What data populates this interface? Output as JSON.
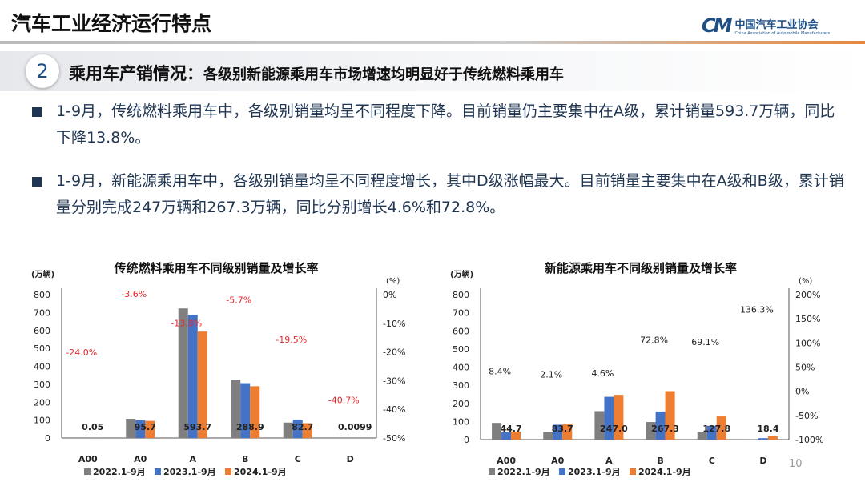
{
  "header": {
    "title": "汽车工业经济运行特点",
    "logo_cn": "中国汽车工业协会",
    "logo_en": "China Association of Automobile Manufacturers",
    "logo_mark": "CM"
  },
  "section": {
    "number": "2",
    "title": "乘用车产销情况：",
    "subtitle": "各级别新能源乘用车市场增速均明显好于传统燃料乘用车"
  },
  "bullets": [
    "1-9月，传统燃料乘用车中，各级别销量均呈不同程度下降。目前销量仍主要集中在A级，累计销量593.7万辆，同比下降13.8%。",
    "1-9月，新能源乘用车中，各级别销量均呈不同程度增长，其中D级涨幅最大。目前销量主要集中在A级和B级，累计销量分别完成247万辆和267.3万辆，同比分别增长4.6%和72.8%。"
  ],
  "page_number": "10",
  "chart_data": [
    {
      "type": "bar",
      "title": "传统燃料乘用车不同级别销量及增长率",
      "ylabel": "(万辆)",
      "y2label": "(%)",
      "categories": [
        "A00",
        "A0",
        "A",
        "B",
        "C",
        "D"
      ],
      "ylim": [
        0,
        800
      ],
      "yticks": [
        "0",
        "100",
        "200",
        "300",
        "400",
        "500",
        "600",
        "700",
        "800"
      ],
      "y2lim": [
        -50,
        0
      ],
      "y2ticks": [
        "-50%",
        "-40%",
        "-30%",
        "-20%",
        "-10%",
        "0%"
      ],
      "series": [
        {
          "name": "2022.1-9月",
          "color": "#7f7f7f",
          "values": [
            0,
            107,
            723,
            325,
            86,
            0
          ]
        },
        {
          "name": "2023.1-9月",
          "color": "#4472c4",
          "values": [
            0,
            100,
            688,
            306,
            103,
            0
          ]
        },
        {
          "name": "2024.1-9月",
          "color": "#ed7d31",
          "values": [
            0.05,
            95.7,
            593.7,
            288.9,
            82.7,
            0.0099
          ]
        }
      ],
      "data_labels": [
        "0.05",
        "95.7",
        "593.7",
        "288.9",
        "82.7",
        "0.0099"
      ],
      "growth_rates": [
        -24.0,
        -3.6,
        -13.8,
        -5.7,
        -19.5,
        -40.7
      ],
      "growth_labels": [
        "-24.0%",
        "-3.6%",
        "-13.8%",
        "-5.7%",
        "-19.5%",
        "-40.7%"
      ],
      "growth_color": "#e8292b",
      "legend": "bottom"
    },
    {
      "type": "bar",
      "title": "新能源乘用车不同级别销量及增长率",
      "ylabel": "(万辆)",
      "y2label": "(%)",
      "categories": [
        "A00",
        "A0",
        "A",
        "B",
        "C",
        "D"
      ],
      "ylim": [
        0,
        800
      ],
      "yticks": [
        "0",
        "100",
        "200",
        "300",
        "400",
        "500",
        "600",
        "700",
        "800"
      ],
      "y2lim": [
        -100,
        200
      ],
      "y2ticks": [
        "-100%",
        "-50%",
        "0%",
        "50%",
        "100%",
        "150%",
        "200%"
      ],
      "series": [
        {
          "name": "2022.1-9月",
          "color": "#7f7f7f",
          "values": [
            92,
            42,
            157,
            97,
            42,
            1
          ]
        },
        {
          "name": "2023.1-9月",
          "color": "#4472c4",
          "values": [
            41,
            82,
            236,
            155,
            76,
            8
          ]
        },
        {
          "name": "2024.1-9月",
          "color": "#ed7d31",
          "values": [
            44.7,
            83.7,
            247.0,
            267.3,
            127.8,
            18.4
          ]
        }
      ],
      "data_labels": [
        "44.7",
        "83.7",
        "247.0",
        "267.3",
        "127.8",
        "18.4"
      ],
      "growth_rates": [
        8.4,
        2.1,
        4.6,
        72.8,
        69.1,
        136.3
      ],
      "growth_labels": [
        "8.4%",
        "2.1%",
        "4.6%",
        "72.8%",
        "69.1%",
        "136.3%"
      ],
      "growth_color": "#222222",
      "legend": "bottom"
    }
  ]
}
